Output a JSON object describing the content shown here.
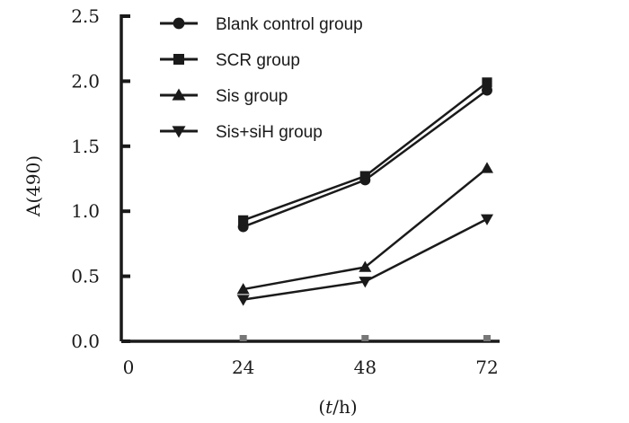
{
  "chart_data": {
    "type": "line",
    "title": "",
    "xlabel": "(t/h)",
    "xlabel_parts": {
      "open": "(",
      "t": "t",
      "rest": "/h)"
    },
    "ylabel": "A(490)",
    "x": [
      24,
      48,
      72
    ],
    "x_ticks": [
      "0",
      "24",
      "48",
      "72"
    ],
    "y_ticks": [
      "0.0",
      "0.5",
      "1.0",
      "1.5",
      "2.0",
      "2.5"
    ],
    "xlim": [
      0,
      72
    ],
    "ylim": [
      0,
      2.5
    ],
    "legend_position": "top-left",
    "series": [
      {
        "name": "Blank control group",
        "marker": "circle",
        "values": [
          0.88,
          1.24,
          1.93
        ]
      },
      {
        "name": "SCR group",
        "marker": "square",
        "values": [
          0.93,
          1.27,
          1.99
        ]
      },
      {
        "name": "Sis group",
        "marker": "triangle-up",
        "values": [
          0.4,
          0.57,
          1.33
        ]
      },
      {
        "name": "Sis+siH group",
        "marker": "triangle-down",
        "values": [
          0.32,
          0.46,
          0.94
        ]
      }
    ],
    "colors": {
      "line": "#1a1a1a",
      "axis": "#1a1a1a"
    }
  }
}
